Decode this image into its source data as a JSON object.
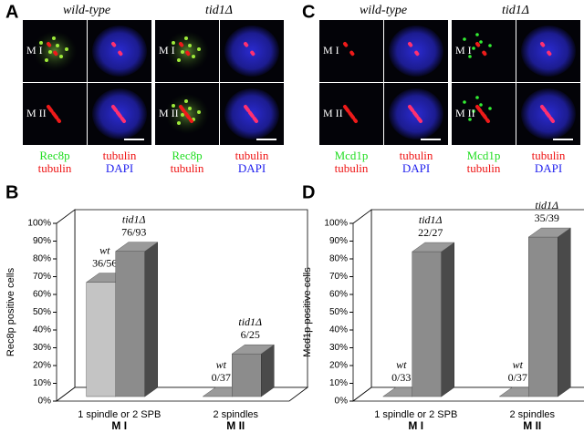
{
  "panel_letters": [
    "A",
    "B",
    "C",
    "D"
  ],
  "image_panels": [
    {
      "columns": [
        "wild-type",
        "tid1Δ"
      ],
      "rows": [
        "M I",
        "M II"
      ],
      "stain_labels": [
        [
          "Rec8p",
          "tubulin"
        ],
        [
          "tubulin",
          "DAPI"
        ]
      ]
    },
    {
      "columns": [
        "wild-type",
        "tid1Δ"
      ],
      "rows": [
        "M I",
        "M II"
      ],
      "stain_labels": [
        [
          "Mcd1p",
          "tubulin"
        ],
        [
          "tubulin",
          "DAPI"
        ]
      ]
    }
  ],
  "chart_data": [
    {
      "type": "bar3d",
      "ylabel": "Rec8p positive cells",
      "categories": [
        "1 spindle or 2 SPB",
        "2 spindles"
      ],
      "phase_labels": [
        "M I",
        "M II"
      ],
      "series": [
        {
          "name": "wt",
          "color": "#c4c4c4",
          "values": [
            64.3,
            0
          ],
          "value_labels": [
            "36/56",
            "0/37"
          ]
        },
        {
          "name": "tid1Δ",
          "color": "#8c8c8c",
          "values": [
            81.7,
            24
          ],
          "value_labels": [
            "76/93",
            "6/25"
          ]
        }
      ],
      "ylim": [
        0,
        100
      ],
      "yticks": [
        {
          "value": 0,
          "label": "0%"
        },
        {
          "value": 10,
          "label": "10%"
        },
        {
          "value": 20,
          "label": "20%"
        },
        {
          "value": 30,
          "label": "30%"
        },
        {
          "value": 40,
          "label": "40%"
        },
        {
          "value": 50,
          "label": "50%"
        },
        {
          "value": 60,
          "label": "60%"
        },
        {
          "value": 70,
          "label": "70%"
        },
        {
          "value": 80,
          "label": "80%"
        },
        {
          "value": 90,
          "label": "90%"
        },
        {
          "value": 100,
          "label": "100%"
        }
      ]
    },
    {
      "type": "bar3d",
      "ylabel": "Mcd1p positive cells",
      "categories": [
        "1 spindle or 2 SPB",
        "2 spindles"
      ],
      "phase_labels": [
        "M I",
        "M II"
      ],
      "series": [
        {
          "name": "wt",
          "color": "#c4c4c4",
          "values": [
            0,
            0
          ],
          "value_labels": [
            "0/33",
            "0/37"
          ]
        },
        {
          "name": "tid1Δ",
          "color": "#8c8c8c",
          "values": [
            81.5,
            89.7
          ],
          "value_labels": [
            "22/27",
            "35/39"
          ]
        }
      ],
      "ylim": [
        0,
        100
      ],
      "yticks": [
        {
          "value": 0,
          "label": "0%"
        },
        {
          "value": 10,
          "label": "10%"
        },
        {
          "value": 20,
          "label": "20%"
        },
        {
          "value": 30,
          "label": "30%"
        },
        {
          "value": 40,
          "label": "40%"
        },
        {
          "value": 50,
          "label": "50%"
        },
        {
          "value": 60,
          "label": "60%"
        },
        {
          "value": 70,
          "label": "70%"
        },
        {
          "value": 80,
          "label": "80%"
        },
        {
          "value": 90,
          "label": "90%"
        },
        {
          "value": 100,
          "label": "100%"
        }
      ]
    }
  ]
}
